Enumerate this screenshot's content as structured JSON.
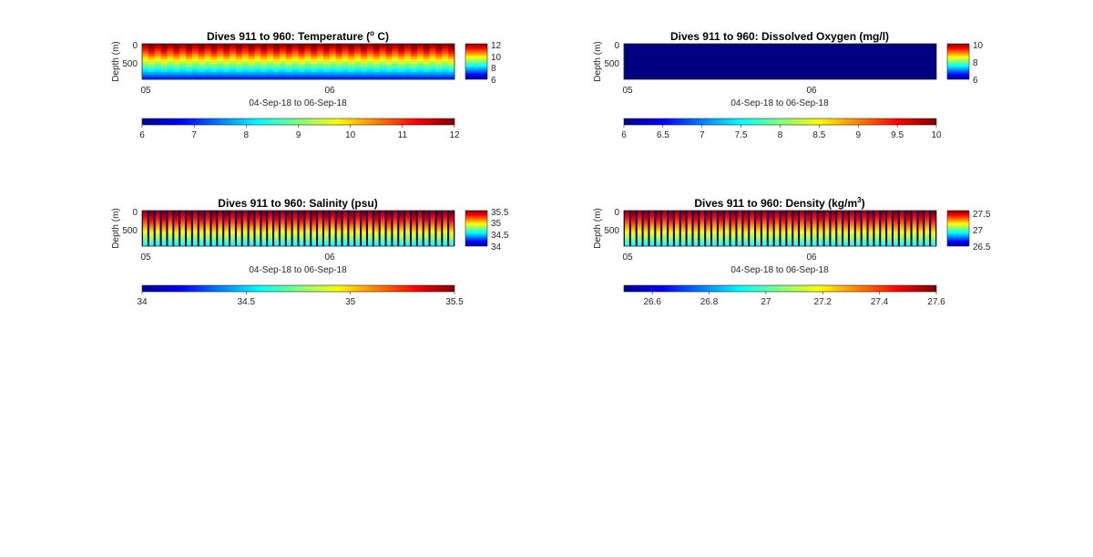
{
  "colormap": "jet",
  "chart_data": [
    {
      "type": "heatmap",
      "title": "Dives 911 to 960: Temperature (",
      "title_sup": "o",
      "title_end": " C)",
      "ylabel": "Depth (m)",
      "xlabel": "04-Sep-18 to 06-Sep-18",
      "x_tick_labels": [
        "05",
        "06"
      ],
      "y_tick_labels": [
        "0",
        "500"
      ],
      "y_range": [
        0,
        900
      ],
      "clim": [
        6,
        12
      ],
      "side_colorbar_ticks": [
        "12",
        "10",
        "8",
        "6"
      ],
      "bottom_colorbar_ticks": [
        "6",
        "7",
        "8",
        "9",
        "10",
        "11",
        "12"
      ],
      "profile_count": 50,
      "surface_value": 11.8,
      "deep_value": 7.0
    },
    {
      "type": "heatmap",
      "title": "Dives 911 to 960: Dissolved Oxygen (mg/l)",
      "title_sup": "",
      "title_end": "",
      "ylabel": "Depth (m)",
      "xlabel": "04-Sep-18 to 06-Sep-18",
      "x_tick_labels": [
        "05",
        "06"
      ],
      "y_tick_labels": [
        "0",
        "500"
      ],
      "y_range": [
        0,
        900
      ],
      "clim": [
        6,
        10
      ],
      "side_colorbar_ticks": [
        "10",
        "8",
        "6"
      ],
      "bottom_colorbar_ticks": [
        "6",
        "6.5",
        "7",
        "7.5",
        "8",
        "8.5",
        "9",
        "9.5",
        "10"
      ],
      "uniform_value": 6
    },
    {
      "type": "heatmap",
      "title": "Dives 911 to 960: Salinity (psu)",
      "title_sup": "",
      "title_end": "",
      "ylabel": "Depth (m)",
      "xlabel": "04-Sep-18 to 06-Sep-18",
      "x_tick_labels": [
        "05",
        "06"
      ],
      "y_tick_labels": [
        "0",
        "500"
      ],
      "y_range": [
        0,
        900
      ],
      "clim": [
        34,
        35.5
      ],
      "side_colorbar_ticks": [
        "35.5",
        "35",
        "34.5",
        "34"
      ],
      "bottom_colorbar_ticks": [
        "34",
        "34.5",
        "35",
        "35.5"
      ],
      "profile_count": 50,
      "background_value": 34,
      "surface_value": 35.45,
      "deep_value": 34.6
    },
    {
      "type": "heatmap",
      "title": "Dives 911 to 960: Density (kg/m",
      "title_sup": "3",
      "title_end": ")",
      "ylabel": "Depth (m)",
      "xlabel": "04-Sep-18 to 06-Sep-18",
      "x_tick_labels": [
        "05",
        "06"
      ],
      "y_tick_labels": [
        "0",
        "500"
      ],
      "y_range": [
        0,
        900
      ],
      "clim": [
        26.5,
        27.6
      ],
      "side_colorbar_ticks": [
        "27.5",
        "27",
        "26.5"
      ],
      "bottom_colorbar_ticks": [
        "26.6",
        "26.8",
        "27",
        "27.2",
        "27.4",
        "27.6"
      ],
      "profile_count": 50,
      "background_value": 26.5,
      "surface_value": 27.55,
      "deep_value": 26.95
    }
  ]
}
